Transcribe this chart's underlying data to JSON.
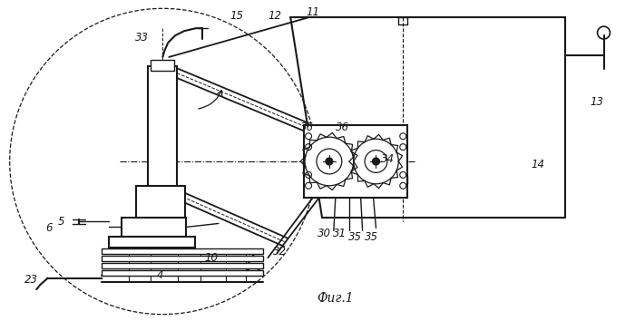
{
  "bg_color": "#ffffff",
  "line_color": "#1a1a1a",
  "fig_width": 7.0,
  "fig_height": 3.54,
  "dpi": 100,
  "caption": "Фиг.1"
}
